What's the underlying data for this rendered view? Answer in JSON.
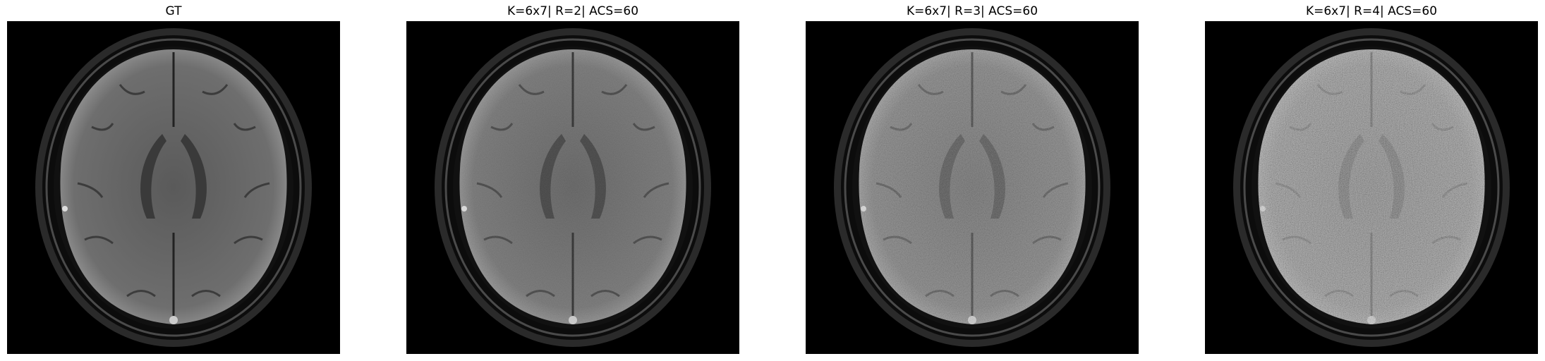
{
  "figure": {
    "panels": [
      {
        "title": "GT",
        "image": "axial-brain-mri-ground-truth",
        "noise_level": 0.0
      },
      {
        "title": "K=6x7| R=2| ACS=60",
        "image": "axial-brain-mri-reconstruction-r2",
        "noise_level": 0.15
      },
      {
        "title": "K=6x7| R=3| ACS=60",
        "image": "axial-brain-mri-reconstruction-r3",
        "noise_level": 0.35
      },
      {
        "title": "K=6x7| R=4| ACS=60",
        "image": "axial-brain-mri-reconstruction-r4",
        "noise_level": 0.6
      }
    ]
  }
}
